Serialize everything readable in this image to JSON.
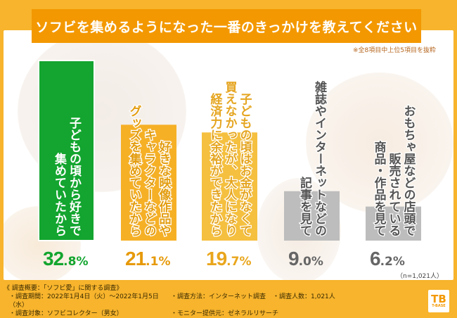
{
  "title": "ソフビを集めるようになった一番のきっかけを教えてください",
  "note": "※全8項目中上位5項目を抜粋",
  "sample": "（n=1,021人）",
  "colors": {
    "background": "#f7b42c",
    "title_bg": "#f39800",
    "green": "#13a52f",
    "orange": "#f6b026",
    "yellow": "#f5c03f",
    "gray": "#bdbdbd"
  },
  "chart_data": {
    "type": "bar",
    "title": "ソフビを集めるようになった一番のきっかけを教えてください",
    "xlabel": "",
    "ylabel": "",
    "unit": "%",
    "ylim": [
      0,
      35
    ],
    "categories": [
      "子どもの頃から好きで集めていたから",
      "好きな映像作品やキャラクターなどのグッズを集めていたから",
      "子どもの頃はお金がなくて買えなかったが、大人になり経済力に余裕ができたから",
      "雑誌やインターネットなどの記事を見て",
      "おもちゃ屋などの店頭で販売されている商品・作品を見て"
    ],
    "label_lines": [
      [
        "子どもの頃から好きで",
        "集めていたから"
      ],
      [
        "好きな映像作品や",
        "キャラクターなどの",
        "グッズを集めていたから"
      ],
      [
        "子どもの頃はお金がなくて",
        "買えなかったが、大人になり",
        "経済力に余裕ができたから"
      ],
      [
        "雑誌やインターネットなどの",
        "記事を見て"
      ],
      [
        "おもちゃ屋などの店頭で",
        "販売されている",
        "商品・作品を見て"
      ]
    ],
    "values": [
      32.8,
      21.1,
      19.7,
      9.0,
      6.2
    ],
    "value_int": [
      "32",
      "21",
      "19",
      "9",
      "6"
    ],
    "value_dec": [
      ".8%",
      ".1%",
      ".7%",
      ".0%",
      ".2%"
    ],
    "bar_colors": [
      "#13a52f",
      "#f6b026",
      "#f5c03f",
      "#bdbdbd",
      "#bdbdbd"
    ],
    "pct_colors": [
      "#13a52f",
      "#e69a0a",
      "#e9a61c",
      "#666666",
      "#666666"
    ],
    "text_colors": [
      "#ffffff",
      "#e39d10",
      "#e5a520",
      "#555555",
      "#555555"
    ],
    "grid": false,
    "legend": "none"
  },
  "footer": {
    "heading": "《 調査概要：「ソフビ愛」に関する調査》",
    "period": "・調査期間：2022年1月4日（火）～2022年1月5日（水）",
    "method": "・調査方法：インターネット調査",
    "count": "・調査人数：1,021人",
    "target": "・調査対象：ソフビコレクター（男女）",
    "provider": "・モニター提供元：ゼネラルリサーチ"
  },
  "logo": {
    "mark": "TB",
    "text": "T-BASE"
  }
}
